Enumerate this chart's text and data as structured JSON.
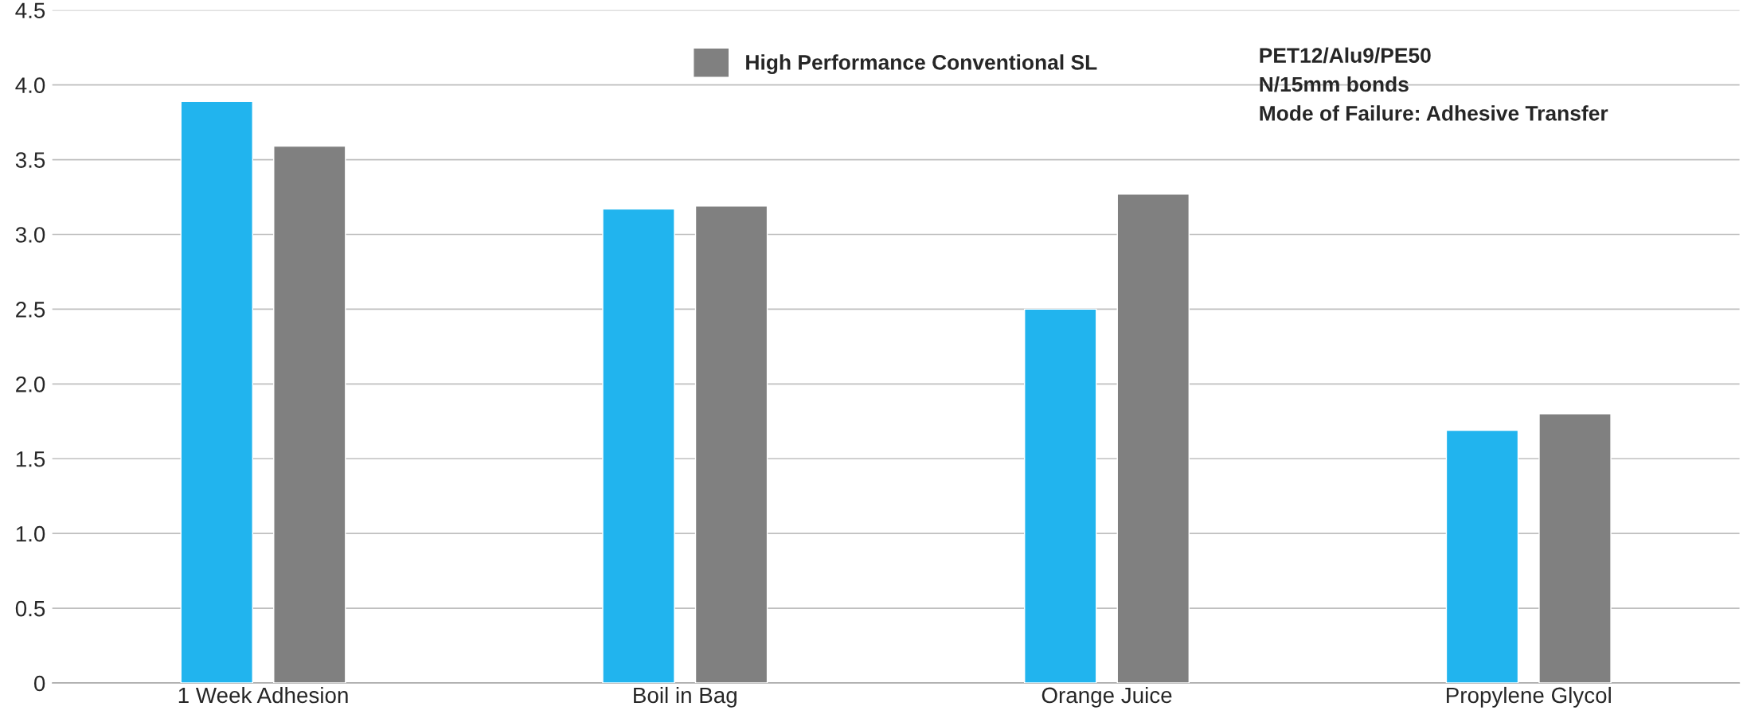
{
  "chart_data": {
    "type": "bar",
    "categories": [
      "1 Week Adhesion",
      "Boil in Bag",
      "Orange Juice",
      "Propylene Glycol"
    ],
    "series": [
      {
        "color": "#21b4ee",
        "values": [
          3.89,
          3.17,
          2.5,
          1.69
        ]
      },
      {
        "name": "High Performance Conventional SL",
        "color": "#808080",
        "values": [
          3.59,
          3.19,
          3.27,
          1.8
        ]
      }
    ],
    "ylim": [
      0,
      4.5
    ],
    "yticks": [
      0,
      {
        "value": 0.5,
        "label": "0.5"
      },
      {
        "value": 1,
        "label": "1.0"
      },
      {
        "value": 1.5,
        "label": "1.5"
      },
      {
        "value": 2,
        "label": "2.0"
      },
      {
        "value": 2.5,
        "label": "2.5"
      },
      {
        "value": 3,
        "label": "3.0"
      },
      {
        "value": 3.5,
        "label": "3.5"
      },
      {
        "value": 4,
        "label": "4.0"
      },
      {
        "value": 4.5,
        "label": "4.5"
      }
    ],
    "grid": "y",
    "legend": "top",
    "annotations": [
      "PET12/Alu9/PE50",
      "N/15mm bonds",
      "Mode of Failure: Adhesive Transfer"
    ]
  }
}
